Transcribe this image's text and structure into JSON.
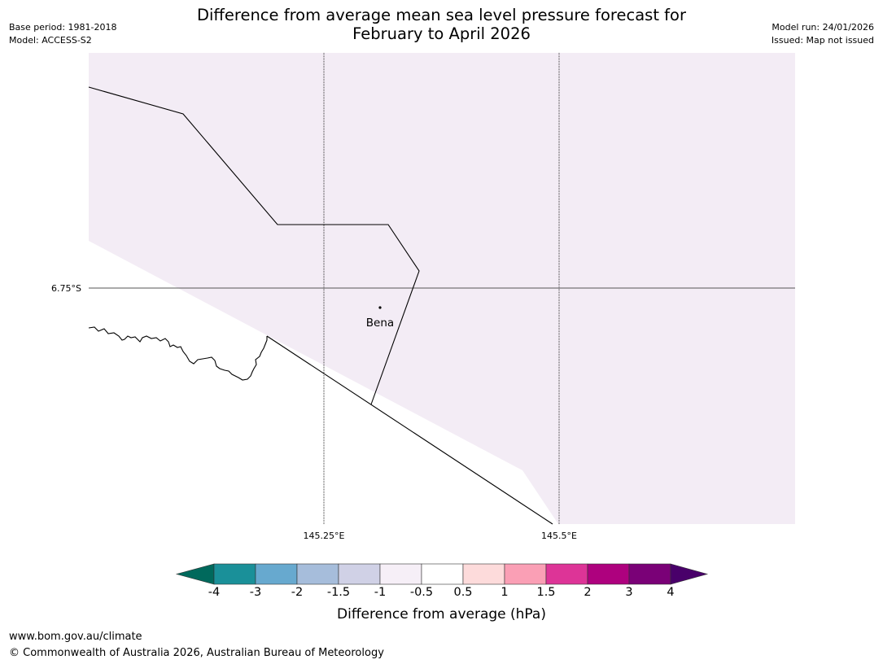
{
  "header": {
    "title_line1": "Difference from average mean sea level pressure forecast for",
    "title_line2": "February to April 2026",
    "base_period": "Base period: 1981-2018",
    "model": "Model: ACCESS-S2",
    "model_run": "Model run: 24/01/2026",
    "issued": "Issued: Map not issued"
  },
  "map": {
    "place_label": "Bena",
    "lat_label": "6.75°S",
    "lon_labels": [
      "145.25°E",
      "145.5°E"
    ],
    "fill_color": "#f3ecf5",
    "category": "-1 to -0.5"
  },
  "colorbar": {
    "title": "Difference from average (hPa)",
    "tick_labels": [
      "-4",
      "-3",
      "-2",
      "-1.5",
      "-1",
      "-0.5",
      "0.5",
      "1",
      "1.5",
      "2",
      "3",
      "4"
    ],
    "colors": [
      "#00695c",
      "#1a9099",
      "#67a9cf",
      "#a6bddb",
      "#d0d1e6",
      "#f6eff7",
      "#ffffff",
      "#fddbdb",
      "#fa9fb5",
      "#dd3497",
      "#ae017e",
      "#7a0177",
      "#49006a"
    ]
  },
  "footer": {
    "url": "www.bom.gov.au/climate",
    "copyright": "© Commonwealth of Australia 2026, Australian Bureau of Meteorology"
  }
}
